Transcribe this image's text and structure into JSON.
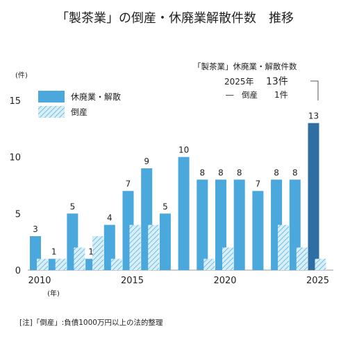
{
  "title": "「製茶業」の倒産・休廃業解散件数　推移",
  "note": "[注]「倒産」:負債1000万円以上の法的整理",
  "chart_data": {
    "type": "bar",
    "title": "「製茶業」の倒産・休廃業解散件数　推移",
    "ylabel": "(件)",
    "xlabel": "(年)",
    "ylim": [
      0,
      15
    ],
    "xlim": [
      2010,
      2025
    ],
    "yticks": [
      0,
      5,
      10,
      15
    ],
    "xticks": [
      2010,
      2015,
      2020,
      2025
    ],
    "legend": "top-left",
    "colors": {
      "kyuhaigyo": "#4aa8dc",
      "kyuhaigyo_2025": "#2f6ea3",
      "tosan_fill": "#d9eef7",
      "tosan_hatch": "#6ec1e4"
    },
    "series": [
      {
        "name": "休廃業・解散",
        "x": [
          2010,
          2011,
          2012,
          2013,
          2014,
          2015,
          2016,
          2017,
          2018,
          2019,
          2020,
          2021,
          2022,
          2023,
          2024,
          2025
        ],
        "values": [
          3,
          1,
          5,
          1,
          4,
          7,
          9,
          5,
          10,
          8,
          8,
          8,
          7,
          8,
          8,
          13
        ]
      },
      {
        "name": "倒産",
        "x": [
          2010,
          2011,
          2012,
          2013,
          2014,
          2015,
          2016,
          2017,
          2018,
          2019,
          2020,
          2021,
          2022,
          2023,
          2024,
          2025
        ],
        "values": [
          1,
          1,
          2,
          3,
          1,
          4,
          4,
          0,
          0,
          1,
          2,
          0,
          0,
          4,
          2,
          1
        ]
      }
    ],
    "annotation": {
      "heading": "「製茶業」休廃業・解散件数",
      "line1_year": "2025年",
      "line1_value": "13件",
      "line2_label": "―　倒産",
      "line2_value": "1件"
    }
  }
}
